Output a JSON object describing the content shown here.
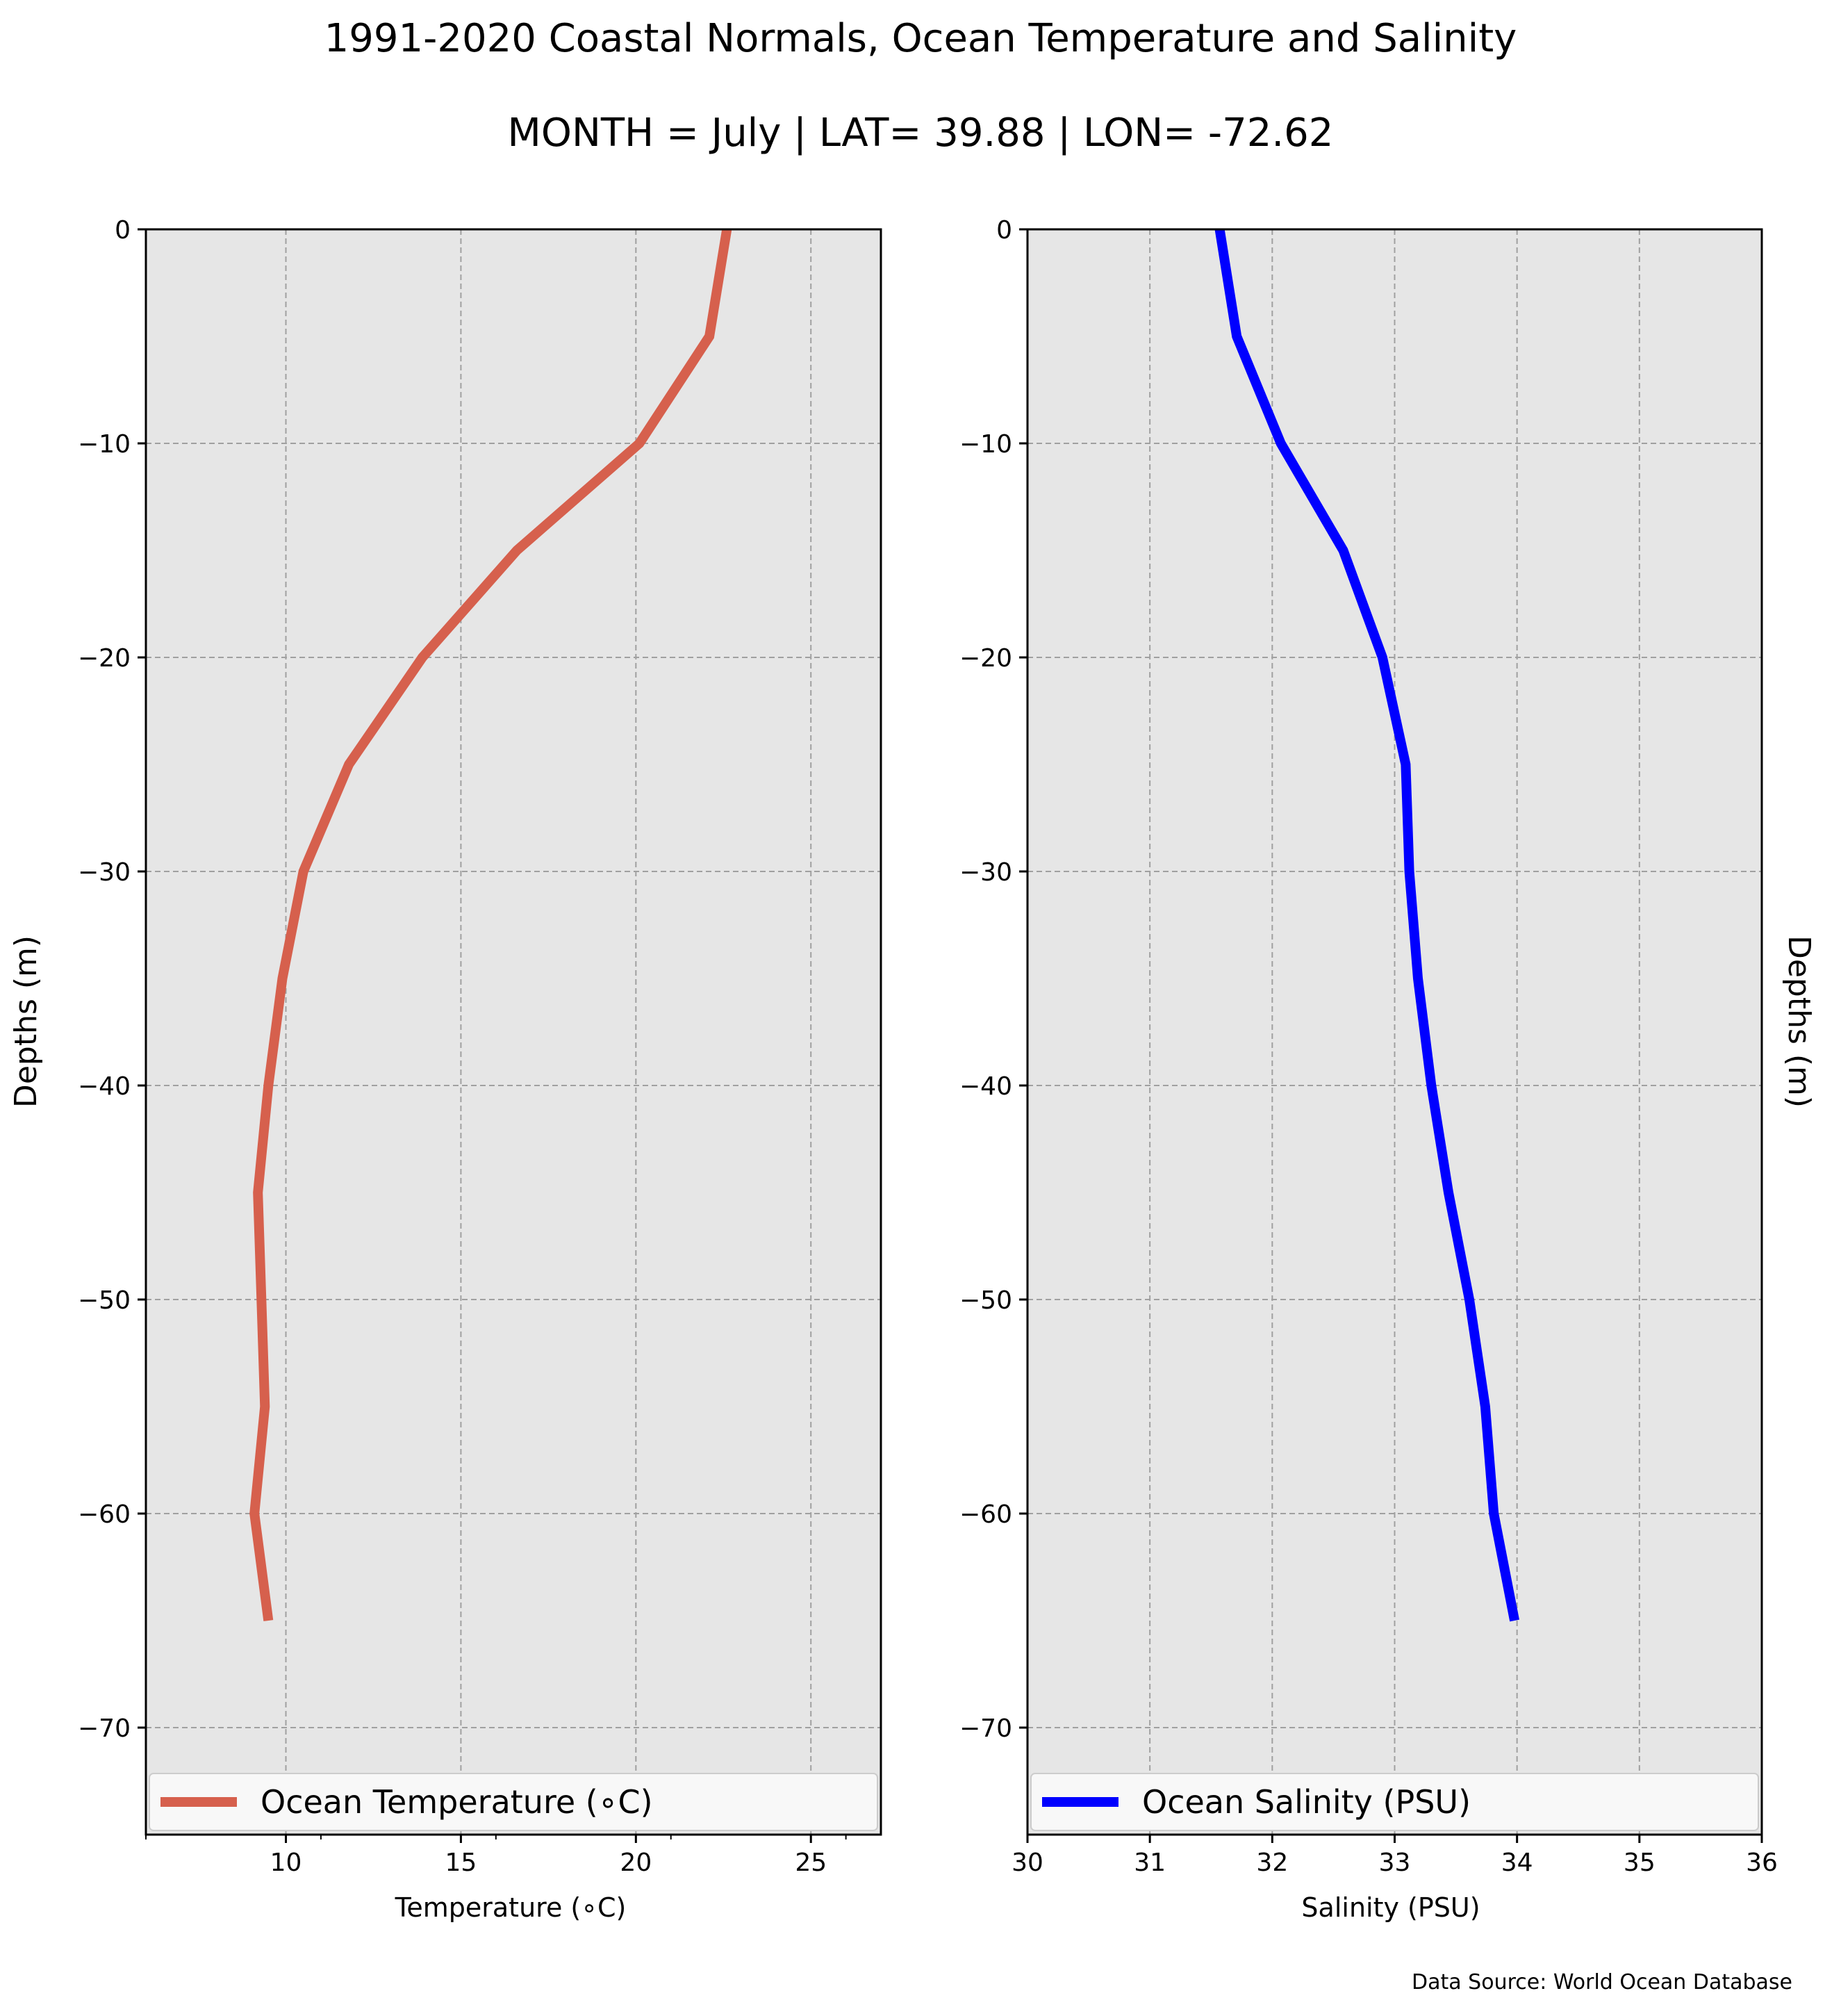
{
  "title": "1991-2020 Coastal Normals, Ocean Temperature and Salinity",
  "subtitle": "MONTH = July | LAT= 39.88 | LON= -72.62",
  "source": "Data Source: World Ocean Database",
  "colors": {
    "panel_background": "#e6e6e6",
    "temperature_line": "#d6604d",
    "salinity_line": "#0000ff",
    "grid": "#a0a0a0"
  },
  "chart_data": [
    {
      "type": "line",
      "xlabel": "Temperature ($^\\circ$C)",
      "xlabel_display": "Temperature (∘C)",
      "ylabel": "Depths (m)",
      "xlim": [
        6,
        27
      ],
      "ylim": [
        -75,
        0
      ],
      "xticks": [
        10,
        15,
        20,
        25
      ],
      "xtick_labels": [
        "10",
        "15",
        "20",
        "25"
      ],
      "yticks": [
        0,
        -10,
        -20,
        -30,
        -40,
        -50,
        -60,
        -70
      ],
      "ytick_labels": [
        "0",
        "−10",
        "−20",
        "−30",
        "−40",
        "−50",
        "−60",
        "−70"
      ],
      "grid": true,
      "legend_placement": "lower",
      "series": [
        {
          "name": "Ocean Temperature (∘C)",
          "color": "#d6604d",
          "x": [
            22.6,
            22.1,
            20.1,
            16.6,
            13.9,
            11.8,
            10.5,
            9.9,
            9.5,
            9.2,
            9.3,
            9.4,
            9.1,
            9.5
          ],
          "y": [
            0,
            -5,
            -10,
            -15,
            -20,
            -25,
            -30,
            -35,
            -40,
            -45,
            -50,
            -55,
            -60,
            -65
          ]
        }
      ]
    },
    {
      "type": "line",
      "xlabel": "Salinity (PSU)",
      "ylabel": "Depths (m)",
      "xlim": [
        30,
        36
      ],
      "ylim": [
        -75,
        0
      ],
      "xticks": [
        30,
        31,
        32,
        33,
        34,
        35,
        36
      ],
      "xtick_labels": [
        "30",
        "31",
        "32",
        "33",
        "34",
        "35",
        "36"
      ],
      "yticks": [
        0,
        -10,
        -20,
        -30,
        -40,
        -50,
        -60,
        -70
      ],
      "ytick_labels": [
        "0",
        "−10",
        "−20",
        "−30",
        "−40",
        "−50",
        "−60",
        "−70"
      ],
      "grid": true,
      "legend_placement": "lower",
      "series": [
        {
          "name": "Ocean Salinity (PSU)",
          "color": "#0000ff",
          "x": [
            31.57,
            31.71,
            32.07,
            32.58,
            32.9,
            33.09,
            33.12,
            33.19,
            33.3,
            33.44,
            33.61,
            33.74,
            33.81,
            33.98
          ],
          "y": [
            0,
            -5,
            -10,
            -15,
            -20,
            -25,
            -30,
            -35,
            -40,
            -45,
            -50,
            -55,
            -60,
            -65
          ]
        }
      ]
    }
  ]
}
